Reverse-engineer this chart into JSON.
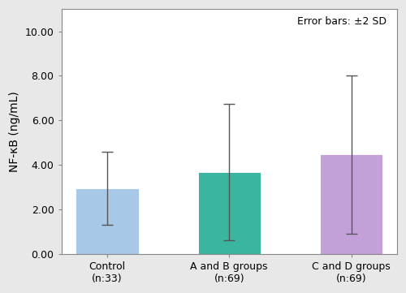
{
  "categories": [
    "Control\n(n:33)",
    "A and B groups\n(n:69)",
    "C and D groups\n(n:69)"
  ],
  "bar_values": [
    2.9,
    3.65,
    4.45
  ],
  "error_upper": [
    4.6,
    6.75,
    8.0
  ],
  "error_lower": [
    1.3,
    0.6,
    0.9
  ],
  "bar_colors": [
    "#a8c8e8",
    "#3ab5a0",
    "#c4a0d8"
  ],
  "bar_edgecolors": [
    "#a8c8e8",
    "#3ab5a0",
    "#c4a0d8"
  ],
  "ylabel": "NF-κB (ng/mL)",
  "ylim": [
    0,
    11.0
  ],
  "yticks": [
    0.0,
    2.0,
    4.0,
    6.0,
    8.0,
    10.0
  ],
  "annotation": "Error bars: ±2 SD",
  "annotation_fontsize": 9,
  "tick_label_fontsize": 9,
  "ylabel_fontsize": 10,
  "bar_width": 0.5,
  "figsize": [
    5.0,
    3.61
  ],
  "dpi": 100,
  "fig_facecolor": "#e8e8e8",
  "plot_facecolor": "#ffffff",
  "spine_color": "#888888",
  "error_color": "#555555"
}
